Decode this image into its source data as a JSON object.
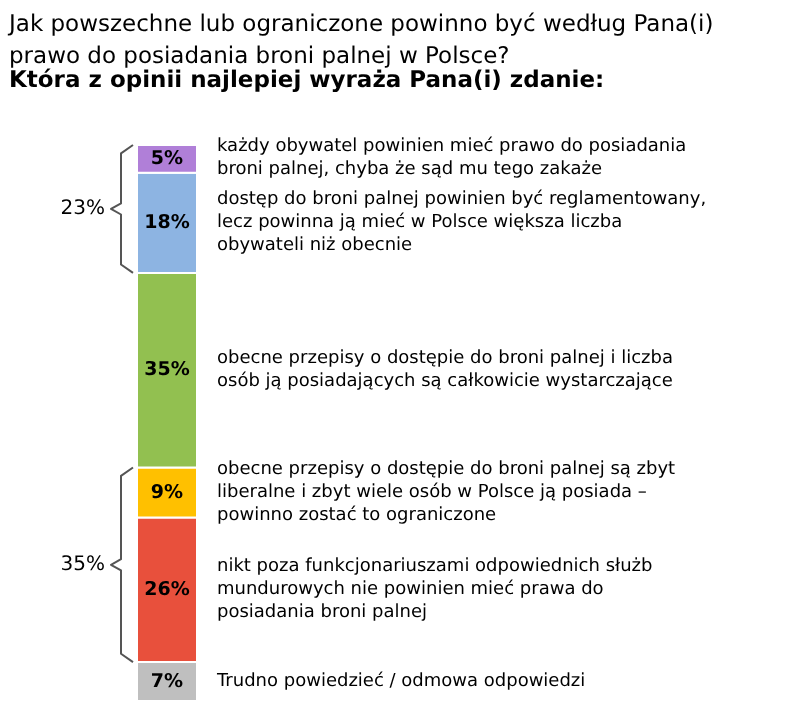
{
  "chart_data": {
    "type": "bar",
    "stacked": true,
    "title": "Jak powszechne lub ograniczone powinno być według Pana(i)\nprawo do posiadania broni palnej w Polsce?",
    "subtitle": "Która z opinii najlepiej wyraża Pana(i) zdanie:",
    "categories": [
      null
    ],
    "series": [
      {
        "name": "Trudno powiedzieć / odmowa odpowiedzi",
        "color": "#bfbfbf",
        "values": [
          7
        ],
        "value_labels": [
          "7%"
        ]
      },
      {
        "name": "nikt poza funkcjonariuszami odpowiednich służb\nmundurowych nie powinien mieć prawa do\nposiadania broni palnej",
        "color": "#e8503c",
        "values": [
          26
        ],
        "value_labels": [
          "26%"
        ]
      },
      {
        "name": "obecne przepisy o dostępie do broni palnej są zbyt\nliberalne i zbyt wiele osób w Polsce ją posiada –\npowinno zostać to ograniczone",
        "color": "#ffc000",
        "values": [
          9
        ],
        "value_labels": [
          "9%"
        ]
      },
      {
        "name": "obecne przepisy o dostępie do broni palnej i liczba\nosób ją posiadających są całkowicie wystarczające",
        "color": "#92c050",
        "values": [
          35
        ],
        "value_labels": [
          "35%"
        ]
      },
      {
        "name": "dostęp do broni palnej powinien być reglamentowany,\nlecz powinna ją mieć w Polsce większa liczba\nobywateli niż obecnie",
        "color": "#8db4e2",
        "values": [
          18
        ],
        "value_labels": [
          "18%"
        ]
      },
      {
        "name": "każdy obywatel powinien mieć  prawo do posiadania\nbroni palnej, chyba że sąd mu tego zakaże",
        "color": "#b07fd8",
        "values": [
          5
        ],
        "value_labels": [
          "5%"
        ]
      }
    ],
    "annotations": [
      "35%",
      "23%"
    ]
  }
}
